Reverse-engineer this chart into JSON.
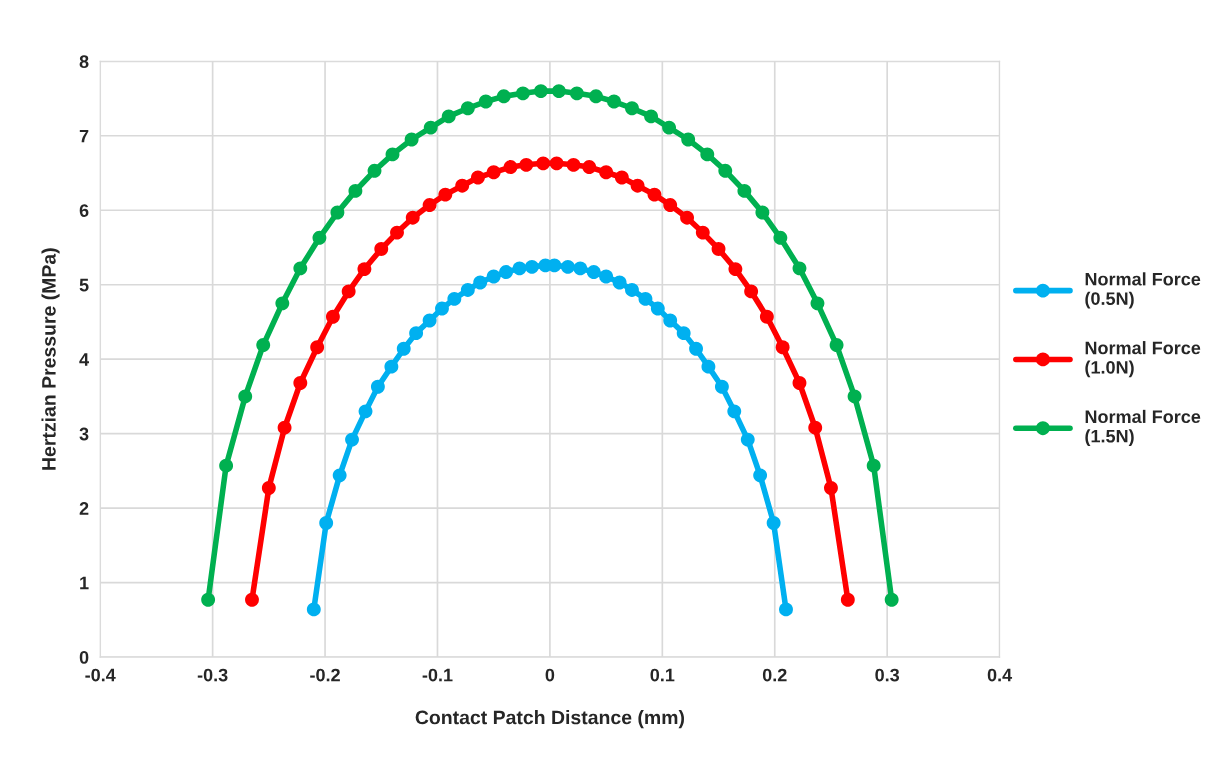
{
  "chart_data": {
    "type": "line",
    "xlabel": "Contact Patch Distance (mm)",
    "ylabel": "Hertzian Pressure (MPa)",
    "xlim": [
      -0.4,
      0.4
    ],
    "xticks": [
      -0.4,
      -0.3,
      -0.2,
      -0.1,
      0,
      0.1,
      0.2,
      0.3,
      0.4
    ],
    "ylim": [
      0,
      8
    ],
    "yticks": [
      0,
      1,
      2,
      3,
      4,
      5,
      6,
      7,
      8
    ],
    "grid": true,
    "legend": "right",
    "marker": "circle",
    "line_style": "solid",
    "series": [
      {
        "name": "Normal Force\n(0.5N)",
        "color": "#00b0f0",
        "x": [
          -0.21,
          -0.199,
          -0.187,
          -0.176,
          -0.164,
          -0.153,
          -0.141,
          -0.13,
          -0.119,
          -0.107,
          -0.096,
          -0.085,
          -0.073,
          -0.062,
          -0.05,
          -0.039,
          -0.027,
          -0.016,
          -0.004,
          0.004,
          0.016,
          0.027,
          0.039,
          0.05,
          0.062,
          0.073,
          0.085,
          0.096,
          0.107,
          0.119,
          0.13,
          0.141,
          0.153,
          0.164,
          0.176,
          0.187,
          0.199,
          0.21
        ],
        "values": [
          0.64,
          1.8,
          2.44,
          2.92,
          3.3,
          3.63,
          3.9,
          4.14,
          4.35,
          4.52,
          4.68,
          4.81,
          4.93,
          5.03,
          5.11,
          5.17,
          5.22,
          5.24,
          5.26,
          5.26,
          5.24,
          5.22,
          5.17,
          5.11,
          5.03,
          4.93,
          4.81,
          4.68,
          4.52,
          4.35,
          4.14,
          3.9,
          3.63,
          3.3,
          2.92,
          2.44,
          1.8,
          0.64
        ]
      },
      {
        "name": "Normal Force\n(1.0N)",
        "color": "#ff0000",
        "x": [
          -0.265,
          -0.25,
          -0.236,
          -0.222,
          -0.207,
          -0.193,
          -0.179,
          -0.165,
          -0.15,
          -0.136,
          -0.122,
          -0.107,
          -0.093,
          -0.078,
          -0.064,
          -0.05,
          -0.035,
          -0.021,
          -0.006,
          0.006,
          0.021,
          0.035,
          0.05,
          0.064,
          0.078,
          0.093,
          0.107,
          0.122,
          0.136,
          0.15,
          0.165,
          0.179,
          0.193,
          0.207,
          0.222,
          0.236,
          0.25,
          0.265
        ],
        "values": [
          0.77,
          2.27,
          3.08,
          3.68,
          4.16,
          4.57,
          4.91,
          5.21,
          5.48,
          5.7,
          5.9,
          6.07,
          6.21,
          6.33,
          6.44,
          6.51,
          6.58,
          6.61,
          6.63,
          6.63,
          6.61,
          6.58,
          6.51,
          6.44,
          6.33,
          6.21,
          6.07,
          5.9,
          5.7,
          5.48,
          5.21,
          4.91,
          4.57,
          4.16,
          3.68,
          3.08,
          2.27,
          0.77
        ]
      },
      {
        "name": "Normal Force\n(1.5N)",
        "color": "#00b050",
        "x": [
          -0.304,
          -0.288,
          -0.271,
          -0.255,
          -0.238,
          -0.222,
          -0.205,
          -0.189,
          -0.173,
          -0.156,
          -0.14,
          -0.123,
          -0.106,
          -0.09,
          -0.073,
          -0.057,
          -0.041,
          -0.024,
          -0.008,
          0.008,
          0.024,
          0.041,
          0.057,
          0.073,
          0.09,
          0.106,
          0.123,
          0.14,
          0.156,
          0.173,
          0.189,
          0.205,
          0.222,
          0.238,
          0.255,
          0.271,
          0.288,
          0.304
        ],
        "values": [
          0.77,
          2.57,
          3.5,
          4.19,
          4.75,
          5.22,
          5.63,
          5.97,
          6.26,
          6.53,
          6.75,
          6.95,
          7.11,
          7.26,
          7.37,
          7.46,
          7.53,
          7.57,
          7.6,
          7.6,
          7.57,
          7.53,
          7.46,
          7.37,
          7.26,
          7.11,
          6.95,
          6.75,
          6.53,
          6.26,
          5.97,
          5.63,
          5.22,
          4.75,
          4.19,
          3.5,
          2.57,
          0.77
        ]
      }
    ]
  }
}
